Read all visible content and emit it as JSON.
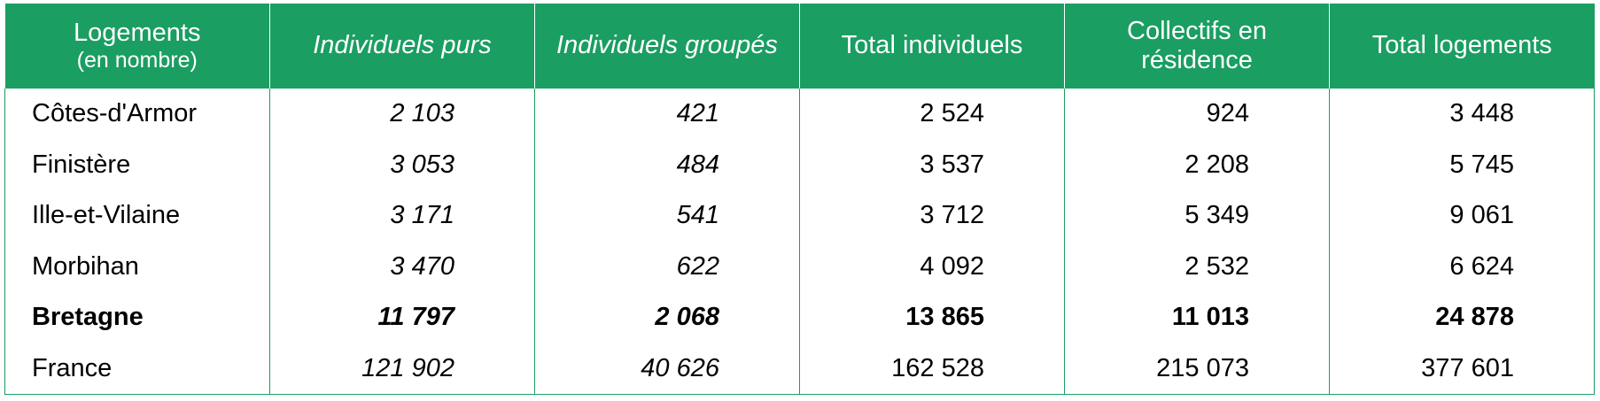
{
  "table": {
    "header": [
      [
        "Logements",
        "(en nombre)"
      ],
      "Individuels purs",
      "Individuels groupés",
      "Total individuels",
      "Collectifs en résidence",
      "Total logements"
    ],
    "rows": [
      [
        "Côtes-d'Armor",
        "2 103",
        "421",
        "2 524",
        "924",
        "3 448"
      ],
      [
        "Finistère",
        "3 053",
        "484",
        "3 537",
        "2 208",
        "5 745"
      ],
      [
        "Ille-et-Vilaine",
        "3 171",
        "541",
        "3 712",
        "5 349",
        "9 061"
      ],
      [
        "Morbihan",
        "3 470",
        "622",
        "4 092",
        "2 532",
        "6 624"
      ],
      [
        "Bretagne",
        "11 797",
        "2 068",
        "13 865",
        "11 013",
        "24 878"
      ],
      [
        "France",
        "121 902",
        "40 626",
        "162 528",
        "215 073",
        "377 601"
      ]
    ]
  }
}
